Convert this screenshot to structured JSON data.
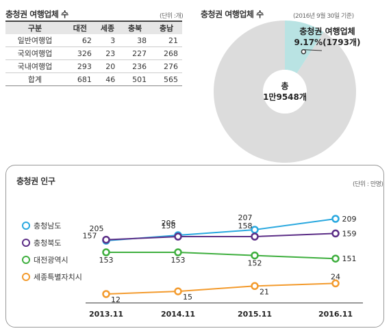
{
  "table": {
    "title": "충청권 여행업체 수",
    "unit": "(단위 :개)",
    "headers": [
      "구분",
      "대전",
      "세종",
      "충북",
      "충남"
    ],
    "rows": [
      [
        "일반여행업",
        "62",
        "3",
        "38",
        "21"
      ],
      [
        "국외여행업",
        "326",
        "23",
        "227",
        "268"
      ],
      [
        "국내여행업",
        "293",
        "20",
        "236",
        "276"
      ],
      [
        "합계",
        "681",
        "46",
        "501",
        "565"
      ]
    ]
  },
  "donut": {
    "title": "충청권 여행업체 수",
    "unit": "(2016년 9월 30일 기준)",
    "callout_line1": "충청권 여행업체",
    "callout_line2": "9.17%(1793개)",
    "center_line1": "총",
    "center_line2": "1만9548개",
    "highlight_color": "#b9e3e3",
    "rest_color": "#dcdcdc"
  },
  "chart_data": [
    {
      "type": "pie",
      "title": "충청권 여행업체 수",
      "slices": [
        {
          "label": "충청권 여행업체",
          "percent": 9.17,
          "count": 1793
        },
        {
          "label": "",
          "percent": 90.83
        }
      ],
      "total": "1만9548개"
    },
    {
      "type": "line",
      "title": "충청권 인구",
      "unit": "(단위 : 만명)",
      "categories": [
        "2013.11",
        "2014.11",
        "2015.11",
        "2016.11"
      ],
      "series": [
        {
          "name": "충청남도",
          "values": [
            205,
            206,
            207,
            209
          ],
          "color": "#29a8df"
        },
        {
          "name": "충청북도",
          "values": [
            157,
            158,
            158,
            159
          ],
          "color": "#5b2d86"
        },
        {
          "name": "대전광역시",
          "values": [
            153,
            153,
            152,
            151
          ],
          "color": "#3dae3d"
        },
        {
          "name": "세종특별자치시",
          "values": [
            12,
            15,
            21,
            24
          ],
          "color": "#f39a2c"
        }
      ],
      "legend_position": "left",
      "grid": false
    }
  ]
}
